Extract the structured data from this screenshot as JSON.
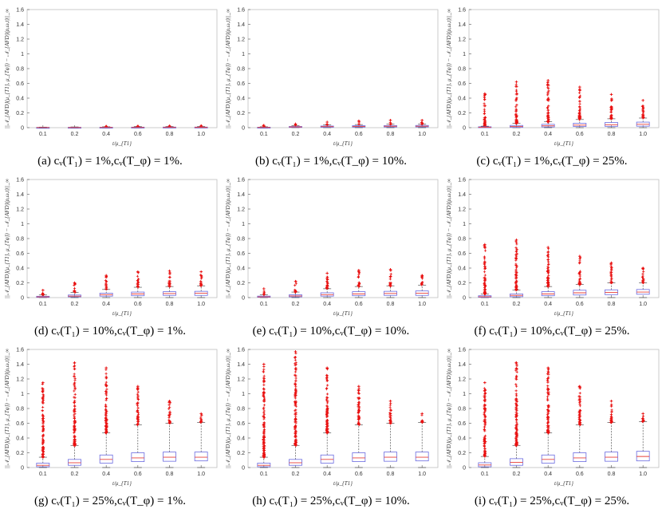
{
  "figure": {
    "ylabel": "||𝒩_{AFD}(μ_{T1}, μ_{Tφ}) − 𝒩_{AFD}(ρ,ω,t)||_∞",
    "xlabel": "t/μ_{T1}"
  },
  "colors": {
    "box": "#6a6ae0",
    "median": "#e8413a",
    "outlier": "#e81010",
    "whisker": "#333333"
  },
  "chart_data": [
    {
      "type": "box",
      "caption": "(a) cᵥ(T₁) = 1%,cᵥ(T_φ) = 1%.",
      "ylim": [
        0,
        1.6
      ],
      "categories": [
        "0.1",
        "0.2",
        "0.4",
        "0.6",
        "0.8",
        "1.0"
      ],
      "boxes": [
        {
          "q1": 0.0,
          "median": 0.002,
          "q3": 0.004,
          "wmax": 0.008,
          "omax": 0.012
        },
        {
          "q1": 0.0,
          "median": 0.002,
          "q3": 0.005,
          "wmax": 0.01,
          "omax": 0.014
        },
        {
          "q1": 0.0,
          "median": 0.003,
          "q3": 0.006,
          "wmax": 0.012,
          "omax": 0.018
        },
        {
          "q1": 0.0,
          "median": 0.003,
          "q3": 0.007,
          "wmax": 0.014,
          "omax": 0.02
        },
        {
          "q1": 0.0,
          "median": 0.004,
          "q3": 0.008,
          "wmax": 0.016,
          "omax": 0.022
        },
        {
          "q1": 0.0,
          "median": 0.004,
          "q3": 0.008,
          "wmax": 0.017,
          "omax": 0.024
        }
      ]
    },
    {
      "type": "box",
      "caption": "(b) cᵥ(T₁) = 1%,cᵥ(T_φ) = 10%.",
      "ylim": [
        0,
        1.6
      ],
      "categories": [
        "0.1",
        "0.2",
        "0.4",
        "0.6",
        "0.8",
        "1.0"
      ],
      "boxes": [
        {
          "q1": 0.0,
          "median": 0.003,
          "q3": 0.006,
          "wmax": 0.012,
          "omax": 0.03
        },
        {
          "q1": 0.004,
          "median": 0.01,
          "q3": 0.016,
          "wmax": 0.028,
          "omax": 0.05
        },
        {
          "q1": 0.006,
          "median": 0.014,
          "q3": 0.022,
          "wmax": 0.036,
          "omax": 0.075
        },
        {
          "q1": 0.008,
          "median": 0.017,
          "q3": 0.026,
          "wmax": 0.042,
          "omax": 0.09
        },
        {
          "q1": 0.009,
          "median": 0.019,
          "q3": 0.028,
          "wmax": 0.046,
          "omax": 0.1
        },
        {
          "q1": 0.01,
          "median": 0.02,
          "q3": 0.03,
          "wmax": 0.048,
          "omax": 0.1
        }
      ]
    },
    {
      "type": "box",
      "caption": "(c) cᵥ(T₁) = 1%,cᵥ(T_φ) = 25%.",
      "ylim": [
        0,
        1.6
      ],
      "categories": [
        "0.1",
        "0.2",
        "0.4",
        "0.6",
        "0.8",
        "1.0"
      ],
      "boxes": [
        {
          "q1": 0.0,
          "median": 0.005,
          "q3": 0.012,
          "wmax": 0.02,
          "omax": 0.46
        },
        {
          "q1": 0.004,
          "median": 0.015,
          "q3": 0.03,
          "wmax": 0.06,
          "omax": 0.62
        },
        {
          "q1": 0.01,
          "median": 0.025,
          "q3": 0.045,
          "wmax": 0.08,
          "omax": 0.64
        },
        {
          "q1": 0.015,
          "median": 0.035,
          "q3": 0.06,
          "wmax": 0.11,
          "omax": 0.55
        },
        {
          "q1": 0.018,
          "median": 0.04,
          "q3": 0.07,
          "wmax": 0.12,
          "omax": 0.45
        },
        {
          "q1": 0.02,
          "median": 0.045,
          "q3": 0.075,
          "wmax": 0.13,
          "omax": 0.37
        }
      ]
    },
    {
      "type": "box",
      "caption": "(d) cᵥ(T₁) = 10%,cᵥ(T_φ) = 1%.",
      "ylim": [
        0,
        1.6
      ],
      "categories": [
        "0.1",
        "0.2",
        "0.4",
        "0.6",
        "0.8",
        "1.0"
      ],
      "boxes": [
        {
          "q1": 0.003,
          "median": 0.01,
          "q3": 0.018,
          "wmax": 0.035,
          "omax": 0.1
        },
        {
          "q1": 0.01,
          "median": 0.02,
          "q3": 0.035,
          "wmax": 0.07,
          "omax": 0.2
        },
        {
          "q1": 0.02,
          "median": 0.04,
          "q3": 0.06,
          "wmax": 0.11,
          "omax": 0.3
        },
        {
          "q1": 0.025,
          "median": 0.05,
          "q3": 0.075,
          "wmax": 0.14,
          "omax": 0.35
        },
        {
          "q1": 0.03,
          "median": 0.055,
          "q3": 0.08,
          "wmax": 0.15,
          "omax": 0.36
        },
        {
          "q1": 0.03,
          "median": 0.06,
          "q3": 0.085,
          "wmax": 0.16,
          "omax": 0.35
        }
      ]
    },
    {
      "type": "box",
      "caption": "(e) cᵥ(T₁) = 10%,cᵥ(T_φ) = 10%.",
      "ylim": [
        0,
        1.6
      ],
      "categories": [
        "0.1",
        "0.2",
        "0.4",
        "0.6",
        "0.8",
        "1.0"
      ],
      "boxes": [
        {
          "q1": 0.004,
          "median": 0.01,
          "q3": 0.02,
          "wmax": 0.04,
          "omax": 0.12
        },
        {
          "q1": 0.01,
          "median": 0.022,
          "q3": 0.038,
          "wmax": 0.075,
          "omax": 0.22
        },
        {
          "q1": 0.02,
          "median": 0.04,
          "q3": 0.065,
          "wmax": 0.12,
          "omax": 0.33
        },
        {
          "q1": 0.025,
          "median": 0.05,
          "q3": 0.08,
          "wmax": 0.15,
          "omax": 0.37
        },
        {
          "q1": 0.03,
          "median": 0.056,
          "q3": 0.085,
          "wmax": 0.16,
          "omax": 0.38
        },
        {
          "q1": 0.03,
          "median": 0.06,
          "q3": 0.09,
          "wmax": 0.17,
          "omax": 0.3
        }
      ]
    },
    {
      "type": "box",
      "caption": "(f) cᵥ(T₁) = 10%,cᵥ(T_φ) = 25%.",
      "ylim": [
        0,
        1.6
      ],
      "categories": [
        "0.1",
        "0.2",
        "0.4",
        "0.6",
        "0.8",
        "1.0"
      ],
      "boxes": [
        {
          "q1": 0.004,
          "median": 0.012,
          "q3": 0.025,
          "wmax": 0.05,
          "omax": 0.72
        },
        {
          "q1": 0.012,
          "median": 0.03,
          "q3": 0.05,
          "wmax": 0.1,
          "omax": 0.78
        },
        {
          "q1": 0.025,
          "median": 0.05,
          "q3": 0.08,
          "wmax": 0.15,
          "omax": 0.68
        },
        {
          "q1": 0.035,
          "median": 0.065,
          "q3": 0.1,
          "wmax": 0.18,
          "omax": 0.56
        },
        {
          "q1": 0.04,
          "median": 0.07,
          "q3": 0.105,
          "wmax": 0.2,
          "omax": 0.47
        },
        {
          "q1": 0.045,
          "median": 0.075,
          "q3": 0.11,
          "wmax": 0.2,
          "omax": 0.4
        }
      ]
    },
    {
      "type": "box",
      "caption": "(g) cᵥ(T₁) = 25%,cᵥ(T_φ) = 1%.",
      "ylim": [
        0,
        1.6
      ],
      "categories": [
        "0.1",
        "0.2",
        "0.4",
        "0.6",
        "0.8",
        "1.0"
      ],
      "boxes": [
        {
          "q1": 0.01,
          "median": 0.03,
          "q3": 0.06,
          "wmax": 0.14,
          "omax": 1.15
        },
        {
          "q1": 0.03,
          "median": 0.065,
          "q3": 0.11,
          "wmax": 0.3,
          "omax": 1.42
        },
        {
          "q1": 0.06,
          "median": 0.11,
          "q3": 0.17,
          "wmax": 0.47,
          "omax": 1.35
        },
        {
          "q1": 0.08,
          "median": 0.13,
          "q3": 0.2,
          "wmax": 0.58,
          "omax": 1.1
        },
        {
          "q1": 0.085,
          "median": 0.14,
          "q3": 0.21,
          "wmax": 0.6,
          "omax": 0.9
        },
        {
          "q1": 0.09,
          "median": 0.14,
          "q3": 0.21,
          "wmax": 0.61,
          "omax": 0.73
        }
      ]
    },
    {
      "type": "box",
      "caption": "(h) cᵥ(T₁) = 25%,cᵥ(T_φ) = 10%.",
      "ylim": [
        0,
        1.6
      ],
      "categories": [
        "0.1",
        "0.2",
        "0.4",
        "0.6",
        "0.8",
        "1.0"
      ],
      "boxes": [
        {
          "q1": 0.01,
          "median": 0.03,
          "q3": 0.06,
          "wmax": 0.14,
          "omax": 1.4
        },
        {
          "q1": 0.03,
          "median": 0.065,
          "q3": 0.11,
          "wmax": 0.3,
          "omax": 1.57
        },
        {
          "q1": 0.06,
          "median": 0.11,
          "q3": 0.17,
          "wmax": 0.47,
          "omax": 1.35
        },
        {
          "q1": 0.08,
          "median": 0.13,
          "q3": 0.2,
          "wmax": 0.58,
          "omax": 1.1
        },
        {
          "q1": 0.085,
          "median": 0.14,
          "q3": 0.21,
          "wmax": 0.6,
          "omax": 0.9
        },
        {
          "q1": 0.09,
          "median": 0.14,
          "q3": 0.21,
          "wmax": 0.61,
          "omax": 0.73
        }
      ]
    },
    {
      "type": "box",
      "caption": "(i) cᵥ(T₁) = 25%,cᵥ(T_φ) = 25%.",
      "ylim": [
        0,
        1.6
      ],
      "categories": [
        "0.1",
        "0.2",
        "0.4",
        "0.6",
        "0.8",
        "1.0"
      ],
      "boxes": [
        {
          "q1": 0.01,
          "median": 0.035,
          "q3": 0.065,
          "wmax": 0.15,
          "omax": 1.15
        },
        {
          "q1": 0.03,
          "median": 0.07,
          "q3": 0.12,
          "wmax": 0.3,
          "omax": 1.42
        },
        {
          "q1": 0.06,
          "median": 0.11,
          "q3": 0.17,
          "wmax": 0.47,
          "omax": 1.35
        },
        {
          "q1": 0.08,
          "median": 0.13,
          "q3": 0.2,
          "wmax": 0.58,
          "omax": 1.1
        },
        {
          "q1": 0.085,
          "median": 0.14,
          "q3": 0.21,
          "wmax": 0.61,
          "omax": 0.9
        },
        {
          "q1": 0.09,
          "median": 0.15,
          "q3": 0.22,
          "wmax": 0.62,
          "omax": 0.73
        }
      ]
    }
  ]
}
